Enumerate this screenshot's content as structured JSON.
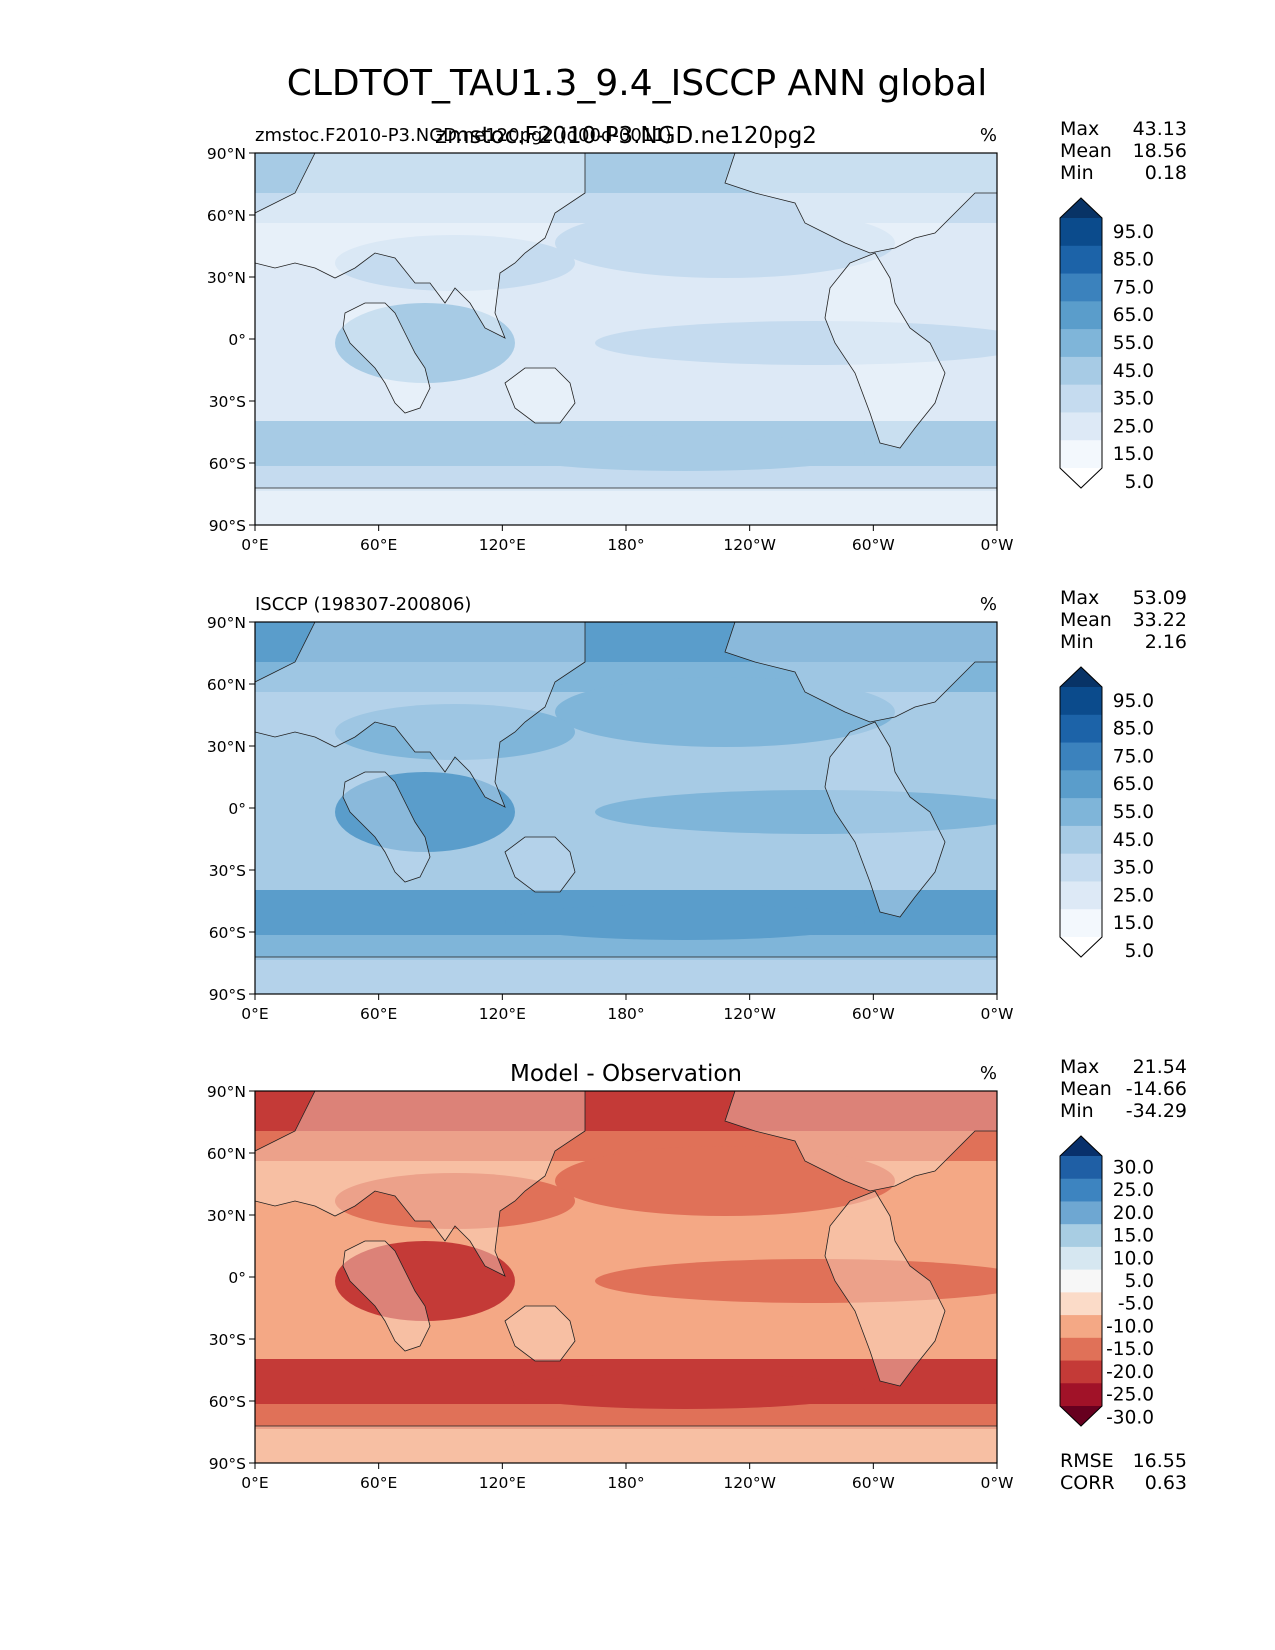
{
  "figure_title": "CLDTOT_TAU1.3_9.4_ISCCP ANN global",
  "axes": {
    "lat_ticks": [
      "90°N",
      "60°N",
      "30°N",
      "0°",
      "30°S",
      "60°S",
      "90°S"
    ],
    "lon_ticks": [
      "0°E",
      "60°E",
      "120°E",
      "180°",
      "120°W",
      "60°W",
      "0°W"
    ]
  },
  "panels": [
    {
      "id": "model",
      "left_title": "zmstoc.F2010-P3.NGD.ne120pg2 (d00d-0011)",
      "center_title": "zmstoc.F2010-P3.NGD.ne120pg2",
      "units": "%",
      "stats": [
        {
          "label": "Max",
          "value": "43.13"
        },
        {
          "label": "Mean",
          "value": "18.56"
        },
        {
          "label": "Min",
          "value": "0.18"
        }
      ],
      "colorbar": {
        "labels": [
          "95.0",
          "85.0",
          "75.0",
          "65.0",
          "55.0",
          "45.0",
          "35.0",
          "25.0",
          "15.0",
          "5.0"
        ],
        "colors": [
          "#083366",
          "#0b4b8c",
          "#1c63a8",
          "#3b82bd",
          "#5a9dcb",
          "#7fb5d9",
          "#a7cbe5",
          "#c5dbef",
          "#dde9f6",
          "#f3f8fd",
          "#ffffff"
        ]
      },
      "field": {
        "base": "#dde9f6",
        "bands": "#c5dbef",
        "strong": "#a7cbe5",
        "land": "#f3f8fd"
      }
    },
    {
      "id": "obs",
      "left_title": "ISCCP (198307-200806)",
      "center_title": "",
      "units": "%",
      "stats": [
        {
          "label": "Max",
          "value": "53.09"
        },
        {
          "label": "Mean",
          "value": "33.22"
        },
        {
          "label": "Min",
          "value": "2.16"
        }
      ],
      "colorbar": {
        "labels": [
          "95.0",
          "85.0",
          "75.0",
          "65.0",
          "55.0",
          "45.0",
          "35.0",
          "25.0",
          "15.0",
          "5.0"
        ],
        "colors": [
          "#083366",
          "#0b4b8c",
          "#1c63a8",
          "#3b82bd",
          "#5a9dcb",
          "#7fb5d9",
          "#a7cbe5",
          "#c5dbef",
          "#dde9f6",
          "#f3f8fd",
          "#ffffff"
        ]
      },
      "field": {
        "base": "#a7cbe5",
        "bands": "#7fb5d9",
        "strong": "#5a9dcb",
        "land": "#c5dbef"
      }
    },
    {
      "id": "diff",
      "left_title": "",
      "center_title": "Model - Observation",
      "units": "%",
      "stats": [
        {
          "label": "Max",
          "value": "21.54"
        },
        {
          "label": "Mean",
          "value": "-14.66"
        },
        {
          "label": "Min",
          "value": "-34.29"
        }
      ],
      "colorbar": {
        "labels": [
          "30.0",
          "25.0",
          "20.0",
          "15.0",
          "10.0",
          "5.0",
          "-5.0",
          "-10.0",
          "-15.0",
          "-20.0",
          "-25.0",
          "-30.0"
        ],
        "colors": [
          "#08306b",
          "#1f5fa5",
          "#3d84c0",
          "#6ea7d2",
          "#a8cde3",
          "#d6e7f1",
          "#f7f7f7",
          "#fbdbc8",
          "#f4a885",
          "#e07158",
          "#c43a37",
          "#a11228",
          "#67001f"
        ]
      },
      "field": {
        "base": "#f4a885",
        "bands": "#e07158",
        "strong": "#c43a37",
        "land": "#fbdbc8"
      },
      "extra_stats": [
        {
          "label": "RMSE",
          "value": "16.55"
        },
        {
          "label": "CORR",
          "value": "0.63"
        }
      ]
    }
  ]
}
